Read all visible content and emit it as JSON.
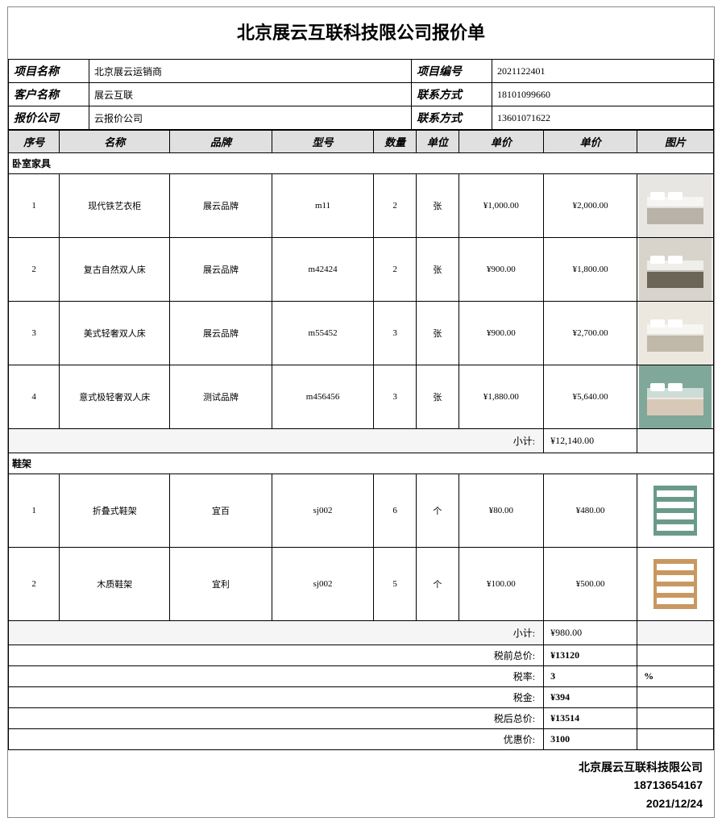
{
  "title": "北京展云互联科技限公司报价单",
  "info": {
    "proj_name_lbl": "项目名称",
    "proj_name": "北京展云运销商",
    "proj_no_lbl": "项目编号",
    "proj_no": "2021122401",
    "cust_lbl": "客户名称",
    "cust": "展云互联",
    "contact1_lbl": "联系方式",
    "contact1": "18101099660",
    "quoter_lbl": "报价公司",
    "quoter": "云报价公司",
    "contact2_lbl": "联系方式",
    "contact2": "13601071622"
  },
  "cols": [
    "序号",
    "名称",
    "品牌",
    "型号",
    "数量",
    "单位",
    "单价",
    "单价",
    "图片"
  ],
  "widths": [
    60,
    130,
    120,
    120,
    50,
    50,
    100,
    110,
    90
  ],
  "sec1": {
    "name": "卧室家具",
    "rows": [
      {
        "no": "1",
        "name": "现代铁艺衣柜",
        "brand": "展云品牌",
        "model": "m11",
        "qty": "2",
        "unit": "张",
        "price": "¥1,000.00",
        "total": "¥2,000.00",
        "img": "bed1"
      },
      {
        "no": "2",
        "name": "复古自然双人床",
        "brand": "展云品牌",
        "model": "m42424",
        "qty": "2",
        "unit": "张",
        "price": "¥900.00",
        "total": "¥1,800.00",
        "img": "bed2"
      },
      {
        "no": "3",
        "name": "美式轻奢双人床",
        "brand": "展云品牌",
        "model": "m55452",
        "qty": "3",
        "unit": "张",
        "price": "¥900.00",
        "total": "¥2,700.00",
        "img": "bed3"
      },
      {
        "no": "4",
        "name": "意式极轻奢双人床",
        "brand": "测试品牌",
        "model": "m456456",
        "qty": "3",
        "unit": "张",
        "price": "¥1,880.00",
        "total": "¥5,640.00",
        "img": "bed4"
      }
    ],
    "subtotal_lbl": "小计:",
    "subtotal": "¥12,140.00"
  },
  "sec2": {
    "name": "鞋架",
    "rows": [
      {
        "no": "1",
        "name": "折叠式鞋架",
        "brand": "宜百",
        "model": "sj002",
        "qty": "6",
        "unit": "个",
        "price": "¥80.00",
        "total": "¥480.00",
        "img": "rack1"
      },
      {
        "no": "2",
        "name": "木质鞋架",
        "brand": "宜利",
        "model": "sj002",
        "qty": "5",
        "unit": "个",
        "price": "¥100.00",
        "total": "¥500.00",
        "img": "rack2"
      }
    ],
    "subtotal_lbl": "小计:",
    "subtotal": "¥980.00"
  },
  "sums": {
    "pre_tax_lbl": "税前总价:",
    "pre_tax": "¥13120",
    "rate_lbl": "税率:",
    "rate": "3",
    "rate_unit": "%",
    "tax_lbl": "税金:",
    "tax": "¥394",
    "post_tax_lbl": "税后总价:",
    "post_tax": "¥13514",
    "discount_lbl": "优惠价:",
    "discount": "3100"
  },
  "footer": {
    "company": "北京展云互联科技限公司",
    "phone": "18713654167",
    "date": "2021/12/24"
  },
  "thumbs": {
    "bed1": {
      "bg": "#e8e6e2",
      "fg": "#b8b2a8"
    },
    "bed2": {
      "bg": "#d8d4cc",
      "fg": "#6b6558"
    },
    "bed3": {
      "bg": "#ece8e0",
      "fg": "#c0b8a8"
    },
    "bed4": {
      "bg": "#7fa89a",
      "fg": "#d8c8b8"
    },
    "rack1": {
      "bg": "#ffffff",
      "fg": "#6a9a8a"
    },
    "rack2": {
      "bg": "#ffffff",
      "fg": "#c89860"
    }
  }
}
